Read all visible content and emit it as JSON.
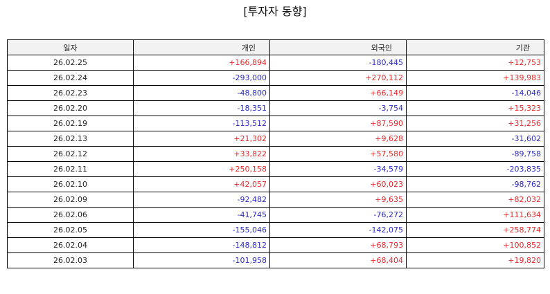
{
  "title": "[투자자 동향]",
  "columns": [
    "일자",
    "개인",
    "외국인",
    "기관"
  ],
  "colors": {
    "positive": "#e8292a",
    "negative": "#2b2bc4",
    "header_bg": "#f2f2f2",
    "border": "#000000"
  },
  "rows": [
    {
      "date": "26.02.25",
      "individual": "+166,894",
      "foreign": "-180,445",
      "institution": "+12,753"
    },
    {
      "date": "26.02.24",
      "individual": "-293,000",
      "foreign": "+270,112",
      "institution": "+139,983"
    },
    {
      "date": "26.02.23",
      "individual": "-48,800",
      "foreign": "+66,149",
      "institution": "-14,046"
    },
    {
      "date": "26.02.20",
      "individual": "-18,351",
      "foreign": "-3,754",
      "institution": "+15,323"
    },
    {
      "date": "26.02.19",
      "individual": "-113,512",
      "foreign": "+87,590",
      "institution": "+31,256"
    },
    {
      "date": "26.02.13",
      "individual": "+21,302",
      "foreign": "+9,628",
      "institution": "-31,602"
    },
    {
      "date": "26.02.12",
      "individual": "+33,822",
      "foreign": "+57,580",
      "institution": "-89,758"
    },
    {
      "date": "26.02.11",
      "individual": "+250,158",
      "foreign": "-34,579",
      "institution": "-203,835"
    },
    {
      "date": "26.02.10",
      "individual": "+42,057",
      "foreign": "+60,023",
      "institution": "-98,762"
    },
    {
      "date": "26.02.09",
      "individual": "-92,482",
      "foreign": "+9,635",
      "institution": "+82,032"
    },
    {
      "date": "26.02.06",
      "individual": "-41,745",
      "foreign": "-76,272",
      "institution": "+111,634"
    },
    {
      "date": "26.02.05",
      "individual": "-155,046",
      "foreign": "-142,075",
      "institution": "+258,774"
    },
    {
      "date": "26.02.04",
      "individual": "-148,812",
      "foreign": "+68,793",
      "institution": "+100,852"
    },
    {
      "date": "26.02.03",
      "individual": "-101,958",
      "foreign": "+68,404",
      "institution": "+19,820"
    }
  ]
}
